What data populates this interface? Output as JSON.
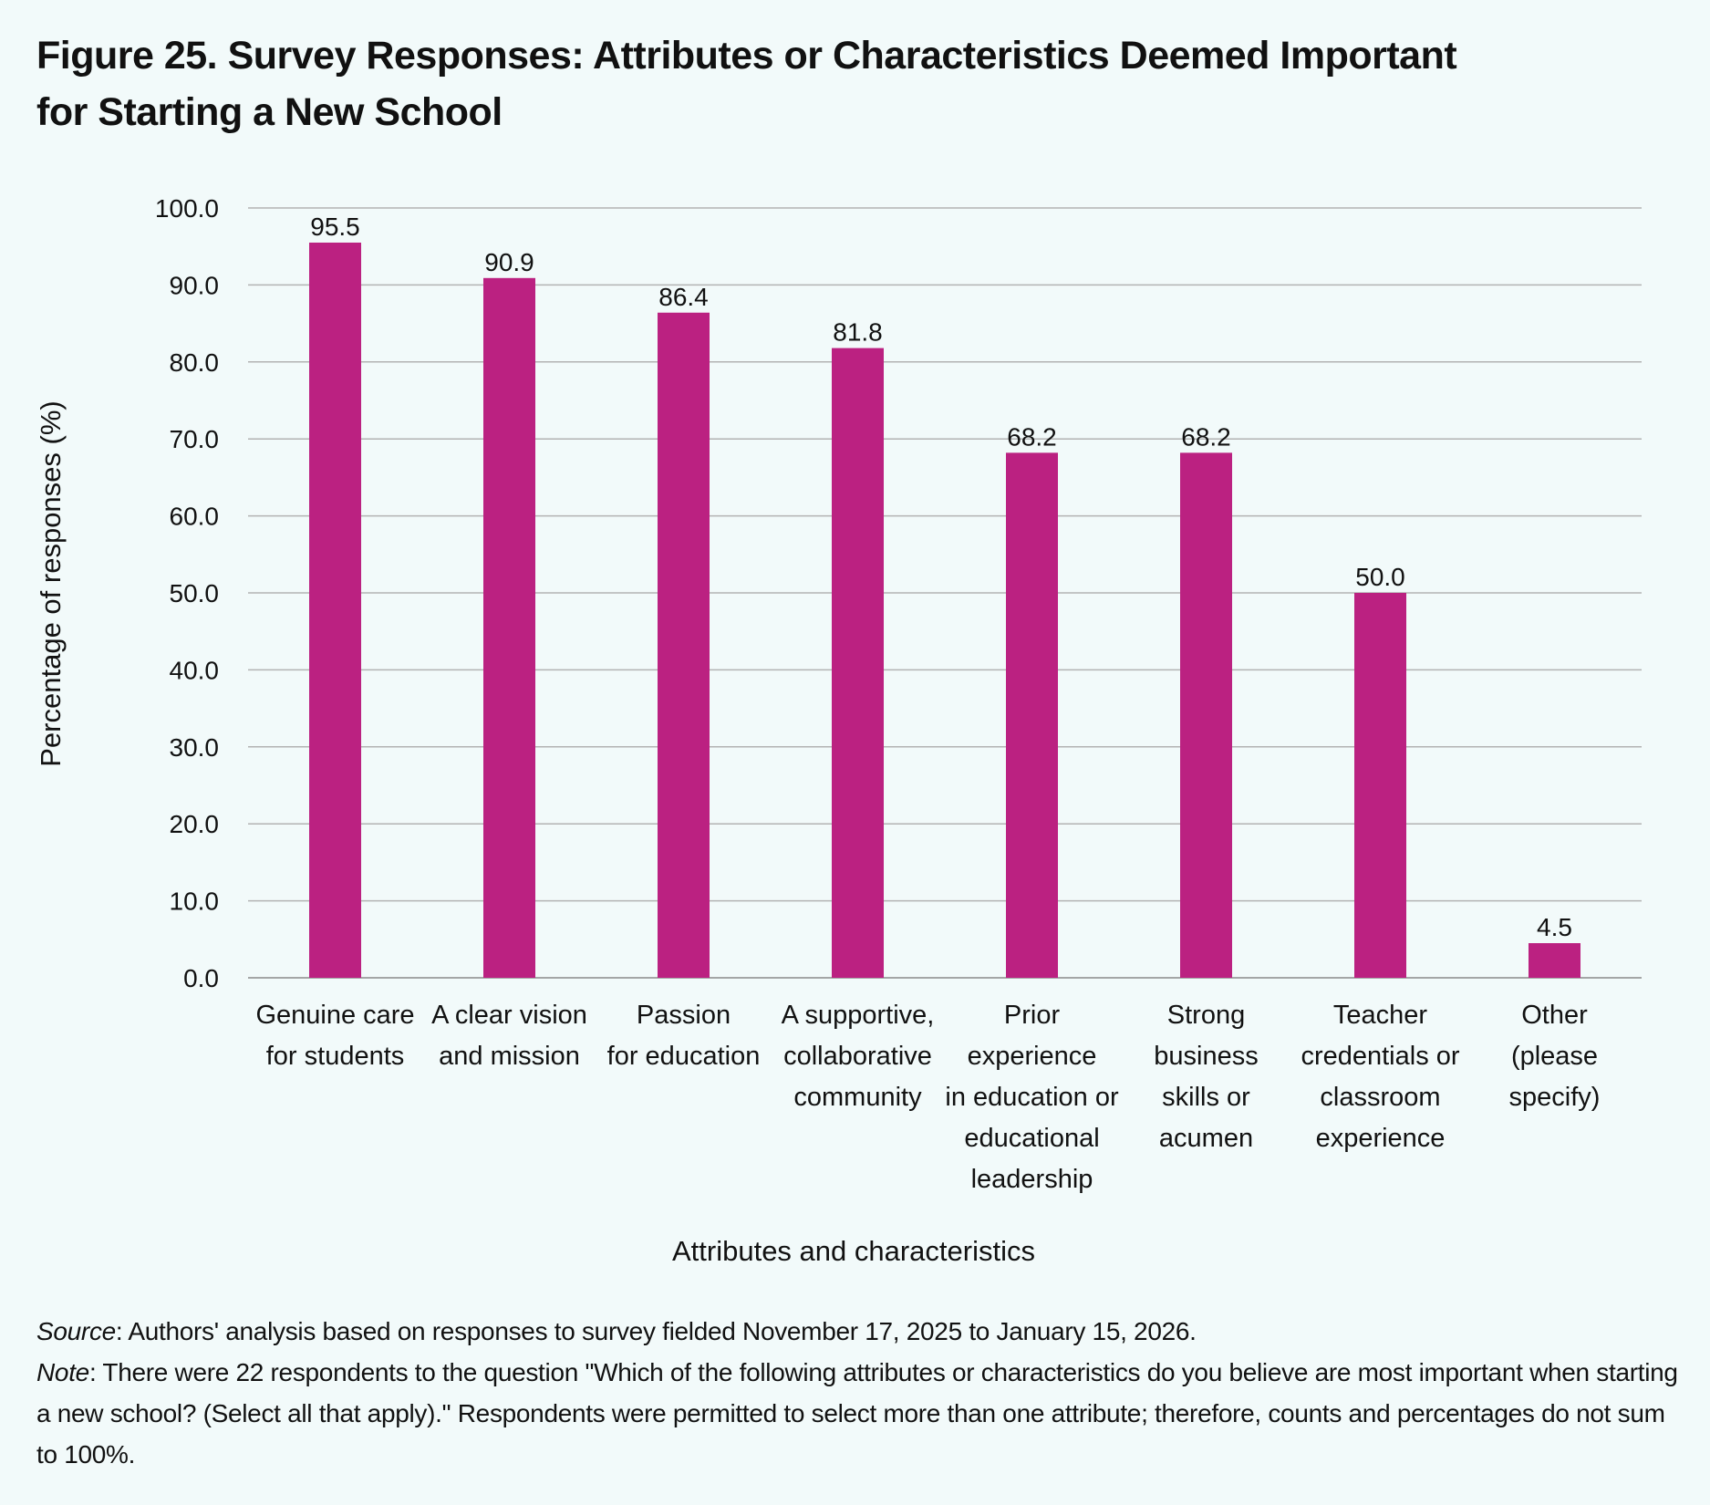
{
  "figure": {
    "title": "Figure 25. Survey Responses: Attributes or Characteristics Deemed Important for Starting a New School"
  },
  "chart_data": {
    "type": "bar",
    "title": "Figure 25. Survey Responses: Attributes or Characteristics Deemed Important for Starting a New School",
    "xlabel": "Attributes and characteristics",
    "ylabel": "Percentage of responses (%)",
    "ylim": [
      0,
      100
    ],
    "yticks": [
      "0.0",
      "10.0",
      "20.0",
      "30.0",
      "40.0",
      "50.0",
      "60.0",
      "70.0",
      "80.0",
      "90.0",
      "100.0"
    ],
    "grid": true,
    "bar_color": "#bb2181",
    "categories": [
      [
        "Genuine care",
        "for students"
      ],
      [
        "A clear vision",
        "and mission"
      ],
      [
        "Passion",
        "for education"
      ],
      [
        "A supportive,",
        "collaborative",
        "community"
      ],
      [
        "Prior",
        "experience",
        "in education or",
        "educational",
        "leadership"
      ],
      [
        "Strong",
        "business",
        "skills or",
        "acumen"
      ],
      [
        "Teacher",
        "credentials or",
        "classroom",
        "experience"
      ],
      [
        "Other",
        "(please",
        "specify)"
      ]
    ],
    "values": [
      95.5,
      90.9,
      86.4,
      81.8,
      68.2,
      68.2,
      50.0,
      4.5
    ],
    "value_labels": [
      "95.5",
      "90.9",
      "86.4",
      "81.8",
      "68.2",
      "68.2",
      "50.0",
      "4.5"
    ]
  },
  "notes": {
    "source_label": "Source",
    "source_text": ": Authors' analysis based on responses to survey fielded November 17, 2025 to January 15, 2026.",
    "note_label": "Note",
    "note_text": ": There were 22 respondents to the question \"Which of the following attributes or characteristics do you believe are most important when starting a new school? (Select all that apply).\" Respondents were permitted to select more than one attribute; therefore, counts and percentages do not sum to 100%."
  }
}
